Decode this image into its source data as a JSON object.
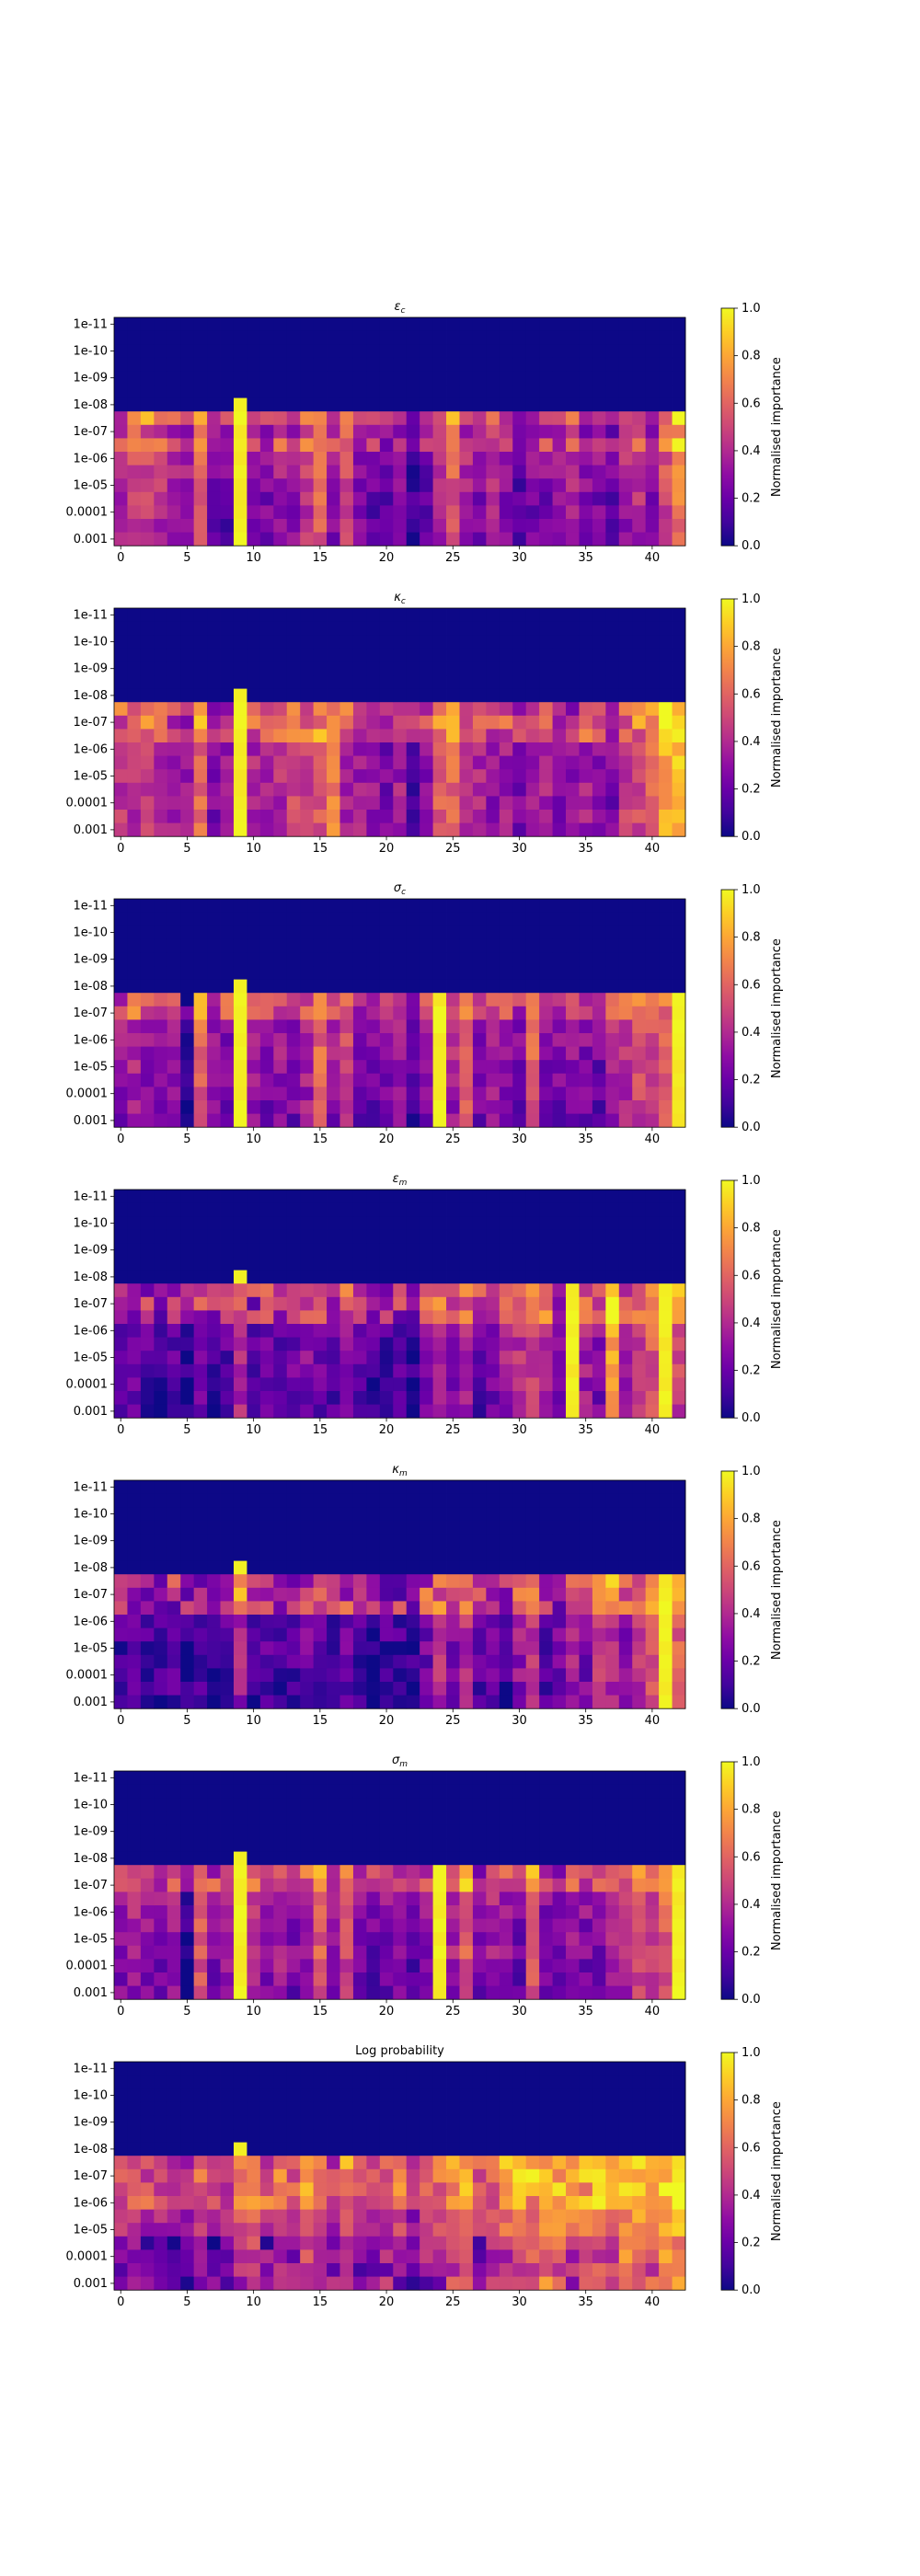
{
  "colorbar": {
    "label": "Normalised importance",
    "ticks": [
      "0.0",
      "0.2",
      "0.4",
      "0.6",
      "0.8",
      "1.0"
    ],
    "colormap": "plasma",
    "range": [
      0,
      1
    ]
  },
  "chart_data": [
    {
      "type": "heatmap",
      "title": "εc",
      "title_main": "ε",
      "title_sub": "c",
      "x_ticks": [
        "0",
        "5",
        "10",
        "15",
        "20",
        "25",
        "30",
        "35",
        "40"
      ],
      "x_tick_values": [
        0,
        5,
        10,
        15,
        20,
        25,
        30,
        35,
        40
      ],
      "y_tick_labels": [
        "1e-11",
        "1e-10",
        "1e-09",
        "1e-08",
        "1e-07",
        "1e-06",
        "1e-05",
        "0.0001",
        "0.001"
      ],
      "n_columns": 43,
      "n_rows": 17,
      "colorbar_label": "Normalised importance",
      "clim": [
        0,
        1
      ],
      "profile": {
        "base": [
          0.4,
          0.55,
          0.5,
          0.45,
          0.4,
          0.35,
          0.62,
          0.3,
          0.25,
          1.0,
          0.35,
          0.3,
          0.4,
          0.35,
          0.5,
          0.62,
          0.35,
          0.55,
          0.3,
          0.25,
          0.25,
          0.3,
          0.15,
          0.25,
          0.45,
          0.6,
          0.4,
          0.3,
          0.45,
          0.35,
          0.2,
          0.3,
          0.3,
          0.35,
          0.4,
          0.3,
          0.3,
          0.25,
          0.4,
          0.45,
          0.35,
          0.55,
          0.7
        ],
        "hot_rows": [
          7,
          9
        ],
        "hot_strength": 0.3,
        "row_effect": "fade"
      }
    },
    {
      "type": "heatmap",
      "title": "κc",
      "title_main": "κ",
      "title_sub": "c",
      "x_ticks": [
        "0",
        "5",
        "10",
        "15",
        "20",
        "25",
        "30",
        "35",
        "40"
      ],
      "x_tick_values": [
        0,
        5,
        10,
        15,
        20,
        25,
        30,
        35,
        40
      ],
      "y_tick_labels": [
        "1e-11",
        "1e-10",
        "1e-09",
        "1e-08",
        "1e-07",
        "1e-06",
        "1e-05",
        "0.0001",
        "0.001"
      ],
      "n_columns": 43,
      "n_rows": 17,
      "colorbar_label": "Normalised importance",
      "clim": [
        0,
        1
      ],
      "profile": {
        "base": [
          0.45,
          0.4,
          0.45,
          0.4,
          0.35,
          0.3,
          0.62,
          0.25,
          0.3,
          1.0,
          0.4,
          0.35,
          0.4,
          0.5,
          0.45,
          0.55,
          0.7,
          0.4,
          0.35,
          0.3,
          0.25,
          0.35,
          0.15,
          0.3,
          0.55,
          0.6,
          0.35,
          0.4,
          0.3,
          0.35,
          0.25,
          0.3,
          0.35,
          0.3,
          0.3,
          0.35,
          0.3,
          0.25,
          0.45,
          0.5,
          0.6,
          0.8,
          0.85
        ],
        "hot_rows": [
          7,
          8,
          9
        ],
        "hot_strength": 0.3,
        "row_effect": "flat"
      }
    },
    {
      "type": "heatmap",
      "title": "σc",
      "title_main": "σ",
      "title_sub": "c",
      "x_ticks": [
        "0",
        "5",
        "10",
        "15",
        "20",
        "25",
        "30",
        "35",
        "40"
      ],
      "x_tick_values": [
        0,
        5,
        10,
        15,
        20,
        25,
        30,
        35,
        40
      ],
      "y_tick_labels": [
        "1e-11",
        "1e-10",
        "1e-09",
        "1e-08",
        "1e-07",
        "1e-06",
        "1e-05",
        "0.0001",
        "0.001"
      ],
      "n_columns": 43,
      "n_rows": 17,
      "colorbar_label": "Normalised importance",
      "clim": [
        0,
        1
      ],
      "profile": {
        "base": [
          0.35,
          0.4,
          0.35,
          0.3,
          0.35,
          0.1,
          0.62,
          0.35,
          0.3,
          1.0,
          0.4,
          0.3,
          0.35,
          0.3,
          0.4,
          0.62,
          0.35,
          0.55,
          0.3,
          0.25,
          0.3,
          0.35,
          0.2,
          0.35,
          0.9,
          0.4,
          0.62,
          0.3,
          0.4,
          0.35,
          0.25,
          0.62,
          0.3,
          0.3,
          0.35,
          0.3,
          0.25,
          0.4,
          0.45,
          0.55,
          0.5,
          0.6,
          0.95
        ],
        "hot_rows": [
          6,
          7,
          8
        ],
        "hot_strength": 0.3,
        "row_effect": "fade"
      }
    },
    {
      "type": "heatmap",
      "title": "εm",
      "title_main": "ε",
      "title_sub": "m",
      "x_ticks": [
        "0",
        "5",
        "10",
        "15",
        "20",
        "25",
        "30",
        "35",
        "40"
      ],
      "x_tick_values": [
        0,
        5,
        10,
        15,
        20,
        25,
        30,
        35,
        40
      ],
      "y_tick_labels": [
        "1e-11",
        "1e-10",
        "1e-09",
        "1e-08",
        "1e-07",
        "1e-06",
        "1e-05",
        "0.0001",
        "0.001"
      ],
      "n_columns": 43,
      "n_rows": 17,
      "colorbar_label": "Normalised importance",
      "clim": [
        0,
        1
      ],
      "profile": {
        "base": [
          0.2,
          0.25,
          0.2,
          0.15,
          0.2,
          0.1,
          0.25,
          0.15,
          0.2,
          0.45,
          0.2,
          0.25,
          0.2,
          0.25,
          0.3,
          0.25,
          0.2,
          0.3,
          0.2,
          0.15,
          0.15,
          0.2,
          0.1,
          0.3,
          0.45,
          0.3,
          0.45,
          0.25,
          0.3,
          0.4,
          0.45,
          0.5,
          0.45,
          0.3,
          0.9,
          0.4,
          0.3,
          0.8,
          0.35,
          0.5,
          0.6,
          0.95,
          0.55
        ],
        "hot_rows": [
          7,
          8,
          9
        ],
        "hot_strength": 0.4,
        "row_effect": "fade"
      }
    },
    {
      "type": "heatmap",
      "title": "κm",
      "title_main": "κ",
      "title_sub": "m",
      "x_ticks": [
        "0",
        "5",
        "10",
        "15",
        "20",
        "25",
        "30",
        "35",
        "40"
      ],
      "x_tick_values": [
        0,
        5,
        10,
        15,
        20,
        25,
        30,
        35,
        40
      ],
      "y_tick_labels": [
        "1e-11",
        "1e-10",
        "1e-09",
        "1e-08",
        "1e-07",
        "1e-06",
        "1e-05",
        "0.0001",
        "0.001"
      ],
      "n_columns": 43,
      "n_rows": 17,
      "colorbar_label": "Normalised importance",
      "clim": [
        0,
        1
      ],
      "profile": {
        "base": [
          0.15,
          0.2,
          0.15,
          0.15,
          0.2,
          0.1,
          0.2,
          0.15,
          0.15,
          0.4,
          0.15,
          0.2,
          0.15,
          0.2,
          0.25,
          0.2,
          0.15,
          0.25,
          0.15,
          0.1,
          0.15,
          0.15,
          0.1,
          0.25,
          0.45,
          0.25,
          0.45,
          0.2,
          0.25,
          0.15,
          0.35,
          0.45,
          0.2,
          0.25,
          0.4,
          0.3,
          0.5,
          0.45,
          0.3,
          0.5,
          0.6,
          0.95,
          0.6
        ],
        "hot_rows": [
          7,
          8,
          9
        ],
        "hot_strength": 0.4,
        "row_effect": "fade"
      }
    },
    {
      "type": "heatmap",
      "title": "σm",
      "title_main": "σ",
      "title_sub": "m",
      "x_ticks": [
        "0",
        "5",
        "10",
        "15",
        "20",
        "25",
        "30",
        "35",
        "40"
      ],
      "x_tick_values": [
        0,
        5,
        10,
        15,
        20,
        25,
        30,
        35,
        40
      ],
      "y_tick_labels": [
        "1e-11",
        "1e-10",
        "1e-09",
        "1e-08",
        "1e-07",
        "1e-06",
        "1e-05",
        "0.0001",
        "0.001"
      ],
      "n_columns": 43,
      "n_rows": 17,
      "colorbar_label": "Normalised importance",
      "clim": [
        0,
        1
      ],
      "profile": {
        "base": [
          0.35,
          0.4,
          0.35,
          0.3,
          0.35,
          0.1,
          0.62,
          0.3,
          0.35,
          1.0,
          0.4,
          0.35,
          0.4,
          0.3,
          0.4,
          0.62,
          0.35,
          0.55,
          0.3,
          0.25,
          0.3,
          0.35,
          0.2,
          0.35,
          0.9,
          0.4,
          0.62,
          0.3,
          0.4,
          0.35,
          0.25,
          0.62,
          0.3,
          0.3,
          0.35,
          0.3,
          0.25,
          0.4,
          0.45,
          0.55,
          0.5,
          0.6,
          0.95
        ],
        "hot_rows": [
          6,
          7,
          8
        ],
        "hot_strength": 0.3,
        "row_effect": "fade"
      }
    },
    {
      "type": "heatmap",
      "title": "Log probability",
      "title_main": "Log probability",
      "title_sub": "",
      "x_ticks": [
        "0",
        "5",
        "10",
        "15",
        "20",
        "25",
        "30",
        "35",
        "40"
      ],
      "x_tick_values": [
        0,
        5,
        10,
        15,
        20,
        25,
        30,
        35,
        40
      ],
      "y_tick_labels": [
        "1e-11",
        "1e-10",
        "1e-09",
        "1e-08",
        "1e-07",
        "1e-06",
        "1e-05",
        "0.0001",
        "0.001"
      ],
      "n_columns": 43,
      "n_rows": 17,
      "colorbar_label": "Normalised importance",
      "clim": [
        0,
        1
      ],
      "profile": {
        "base": [
          0.4,
          0.45,
          0.35,
          0.4,
          0.3,
          0.35,
          0.45,
          0.3,
          0.35,
          0.55,
          0.6,
          0.4,
          0.55,
          0.45,
          0.6,
          0.5,
          0.4,
          0.55,
          0.4,
          0.35,
          0.45,
          0.5,
          0.3,
          0.45,
          0.5,
          0.55,
          0.7,
          0.45,
          0.5,
          0.6,
          0.7,
          0.65,
          0.75,
          0.7,
          0.65,
          0.7,
          0.75,
          0.65,
          0.7,
          0.75,
          0.65,
          0.8,
          0.85
        ],
        "hot_rows": [
          5,
          6,
          7,
          8,
          9,
          10
        ],
        "hot_strength": 0.25,
        "row_effect": "mixed"
      }
    }
  ]
}
